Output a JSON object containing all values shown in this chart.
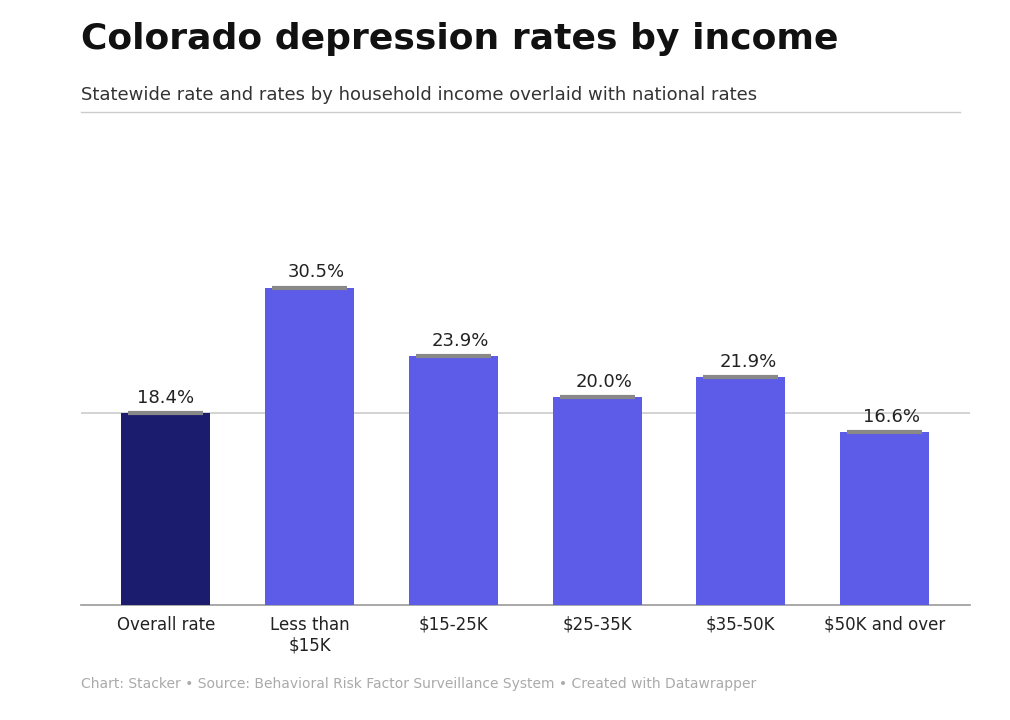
{
  "categories": [
    "Overall rate",
    "Less than\n$15K",
    "$15-25K",
    "$25-35K",
    "$35-50K",
    "$50K and over"
  ],
  "values": [
    18.4,
    30.5,
    23.9,
    20.0,
    21.9,
    16.6
  ],
  "national_line_values": [
    18.4,
    30.5,
    23.9,
    20.0,
    21.9,
    16.6
  ],
  "bar_colors": [
    "#1c1c6e",
    "#5c5ce8",
    "#5c5ce8",
    "#5c5ce8",
    "#5c5ce8",
    "#5c5ce8"
  ],
  "national_line_color": "#888888",
  "overall_hline_color": "#cccccc",
  "overall_hline_value": 18.4,
  "title": "Colorado depression rates by income",
  "subtitle": "Statewide rate and rates by household income overlaid with national rates",
  "footer": "Chart: Stacker • Source: Behavioral Risk Factor Surveillance System • Created with Datawrapper",
  "ylim": [
    0,
    36
  ],
  "background_color": "#ffffff",
  "title_fontsize": 26,
  "subtitle_fontsize": 13,
  "label_fontsize": 13,
  "tick_fontsize": 12,
  "footer_fontsize": 10
}
